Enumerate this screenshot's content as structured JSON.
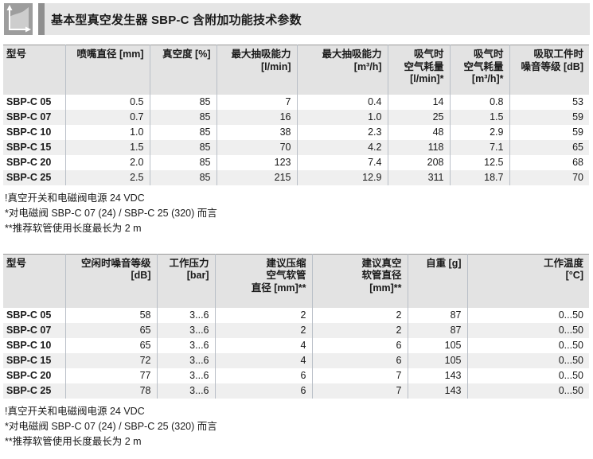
{
  "header": {
    "title": "基本型真空发生器 SBP-C 含附加功能技术参数",
    "icon": "area-chart-icon"
  },
  "colors": {
    "title_bar_bg": "#e5e5e5",
    "title_accent": "#8f8f8f",
    "icon_bg": "#9d9d9d",
    "icon_area": "#cdcdcd",
    "table_header_bg": "#e3e3e3",
    "row_stripe": "#efefef",
    "grid_line": "#b9bfc7",
    "table_top_border": "#9a9a9a",
    "text": "#1a1a1a"
  },
  "table1": {
    "columns": [
      "型号",
      "喷嘴直径 [mm]",
      "真空度 [%]",
      "最大抽吸能力\n[l/min]",
      "最大抽吸能力\n[m³/h]",
      "吸气时\n空气耗量\n[l/min]*",
      "吸气时\n空气耗量\n[m³/h]*",
      "吸取工件时\n噪音等级 [dB]"
    ],
    "rows": [
      [
        "SBP-C 05",
        "0.5",
        "85",
        "7",
        "0.4",
        "14",
        "0.8",
        "53"
      ],
      [
        "SBP-C 07",
        "0.7",
        "85",
        "16",
        "1.0",
        "25",
        "1.5",
        "59"
      ],
      [
        "SBP-C 10",
        "1.0",
        "85",
        "38",
        "2.3",
        "48",
        "2.9",
        "59"
      ],
      [
        "SBP-C 15",
        "1.5",
        "85",
        "70",
        "4.2",
        "118",
        "7.1",
        "65"
      ],
      [
        "SBP-C 20",
        "2.0",
        "85",
        "123",
        "7.4",
        "208",
        "12.5",
        "68"
      ],
      [
        "SBP-C 25",
        "2.5",
        "85",
        "215",
        "12.9",
        "311",
        "18.7",
        "70"
      ]
    ],
    "footnotes": [
      "!真空开关和电磁阀电源 24 VDC",
      "*对电磁阀 SBP-C 07 (24) / SBP-C 25 (320) 而言",
      "**推荐软管使用长度最长为 2 m"
    ]
  },
  "table2": {
    "columns": [
      "型号",
      "空闲时噪音等级\n[dB]",
      "工作压力\n[bar]",
      "建议压缩\n空气软管\n直径 [mm]**",
      "建议真空\n软管直径\n[mm]**",
      "自重 [g]",
      "工作温度\n[°C]"
    ],
    "rows": [
      [
        "SBP-C 05",
        "58",
        "3...6",
        "2",
        "2",
        "87",
        "0...50"
      ],
      [
        "SBP-C 07",
        "65",
        "3...6",
        "2",
        "2",
        "87",
        "0...50"
      ],
      [
        "SBP-C 10",
        "65",
        "3...6",
        "4",
        "6",
        "105",
        "0...50"
      ],
      [
        "SBP-C 15",
        "72",
        "3...6",
        "4",
        "6",
        "105",
        "0...50"
      ],
      [
        "SBP-C 20",
        "77",
        "3...6",
        "6",
        "7",
        "143",
        "0...50"
      ],
      [
        "SBP-C 25",
        "78",
        "3...6",
        "6",
        "7",
        "143",
        "0...50"
      ]
    ],
    "footnotes": [
      "!真空开关和电磁阀电源 24 VDC",
      "*对电磁阀 SBP-C 07 (24) / SBP-C 25 (320) 而言",
      "**推荐软管使用长度最长为 2 m"
    ]
  }
}
